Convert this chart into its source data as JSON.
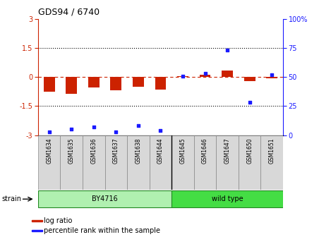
{
  "title": "GDS94 / 6740",
  "samples": [
    "GSM1634",
    "GSM1635",
    "GSM1636",
    "GSM1637",
    "GSM1638",
    "GSM1644",
    "GSM1645",
    "GSM1646",
    "GSM1647",
    "GSM1650",
    "GSM1651"
  ],
  "log_ratio": [
    -0.75,
    -0.85,
    -0.55,
    -0.7,
    -0.5,
    -0.65,
    0.05,
    0.1,
    0.35,
    -0.2,
    -0.05
  ],
  "percentile_rank": [
    3,
    5,
    7,
    3,
    8,
    4,
    51,
    53,
    73,
    28,
    52
  ],
  "ylim_left": [
    -3,
    3
  ],
  "ylim_right": [
    0,
    100
  ],
  "left_yticks": [
    -3,
    -1.5,
    0,
    1.5,
    3
  ],
  "right_yticks": [
    0,
    25,
    50,
    75,
    100
  ],
  "bar_color": "#cc2200",
  "dot_color": "#1a1aff",
  "hline_color": "#cc2200",
  "dotted_color": "#000000",
  "tick_color_left": "#cc2200",
  "tick_color_right": "#1a1aff",
  "by4716_color": "#b0f0b0",
  "wildtype_color": "#44dd44",
  "label_box_color": "#d8d8d8",
  "legend_log_ratio": "log ratio",
  "legend_percentile": "percentile rank within the sample",
  "strain_label": "strain"
}
